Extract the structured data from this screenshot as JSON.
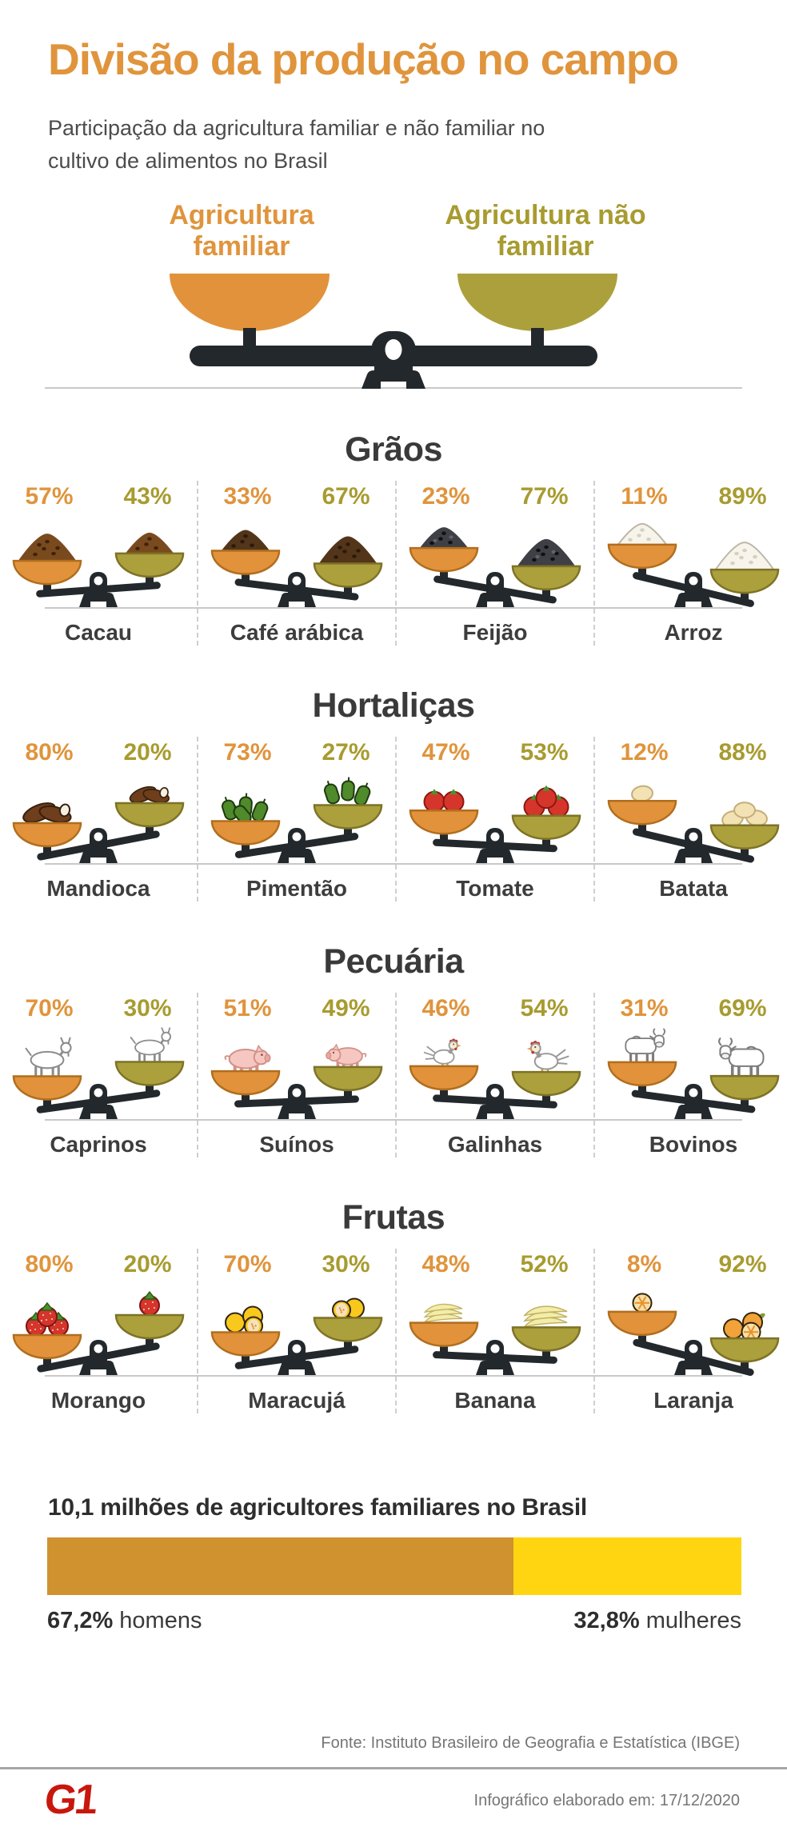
{
  "header": {
    "title": "Divisão da produção no campo",
    "subtitle": "Participação da agricultura familiar e não familiar no cultivo de alimentos no Brasil"
  },
  "legend": {
    "family_label": "Agricultura familiar",
    "non_family_label": "Agricultura não familiar"
  },
  "colors": {
    "family_orange": "#E0943C",
    "non_family_olive": "#A89B30",
    "bowl_orange": "#E2923A",
    "bowl_orange_stroke": "#B06E1E",
    "bowl_olive": "#ABA03C",
    "bowl_olive_stroke": "#7E7226",
    "beam_black": "#23282C",
    "section_title_dark": "#3A3A3A",
    "subtitle_gray": "#4C4C4C",
    "bar_men_orange": "#D0922F",
    "bar_women_yellow": "#FFD512",
    "g1_red": "#C8170D",
    "footer_gray": "#757575",
    "line_gray": "#C9C9C9"
  },
  "chart_data": {
    "type": "balance-scales-infographic",
    "series": [
      "Agricultura familiar",
      "Agricultura não familiar"
    ],
    "unit": "%",
    "sections": [
      {
        "title": "Grãos",
        "items": [
          {
            "label": "Cacau",
            "icon": "cocoa-mound",
            "family_pct": 57,
            "non_family_pct": 43
          },
          {
            "label": "Café arábica",
            "icon": "coffee-mound",
            "family_pct": 33,
            "non_family_pct": 67
          },
          {
            "label": "Feijão",
            "icon": "beans-mound",
            "family_pct": 23,
            "non_family_pct": 77
          },
          {
            "label": "Arroz",
            "icon": "rice-mound",
            "family_pct": 11,
            "non_family_pct": 89
          }
        ]
      },
      {
        "title": "Hortaliças",
        "items": [
          {
            "label": "Mandioca",
            "icon": "cassava-roots",
            "family_pct": 80,
            "non_family_pct": 20
          },
          {
            "label": "Pimentão",
            "icon": "green-peppers",
            "family_pct": 73,
            "non_family_pct": 27
          },
          {
            "label": "Tomate",
            "icon": "tomatoes",
            "family_pct": 47,
            "non_family_pct": 53
          },
          {
            "label": "Batata",
            "icon": "potatoes",
            "family_pct": 12,
            "non_family_pct": 88
          }
        ]
      },
      {
        "title": "Pecuária",
        "items": [
          {
            "label": "Caprinos",
            "icon": "goat",
            "family_pct": 70,
            "non_family_pct": 30
          },
          {
            "label": "Suínos",
            "icon": "pig",
            "family_pct": 51,
            "non_family_pct": 49
          },
          {
            "label": "Galinhas",
            "icon": "chicken",
            "family_pct": 46,
            "non_family_pct": 54
          },
          {
            "label": "Bovinos",
            "icon": "cattle",
            "family_pct": 31,
            "non_family_pct": 69
          }
        ]
      },
      {
        "title": "Frutas",
        "items": [
          {
            "label": "Morango",
            "icon": "strawberries",
            "family_pct": 80,
            "non_family_pct": 20
          },
          {
            "label": "Maracujá",
            "icon": "passion-fruit",
            "family_pct": 70,
            "non_family_pct": 30
          },
          {
            "label": "Banana",
            "icon": "bananas",
            "family_pct": 48,
            "non_family_pct": 52
          },
          {
            "label": "Laranja",
            "icon": "oranges",
            "family_pct": 8,
            "non_family_pct": 92
          }
        ]
      }
    ],
    "gender_bar": {
      "title": "10,1 milhões de agricultores familiares no Brasil",
      "segments": [
        {
          "label": "homens",
          "value_pct": 67.2,
          "value_display": "67,2%",
          "color": "#D0922F"
        },
        {
          "label": "mulheres",
          "value_pct": 32.8,
          "value_display": "32,8%",
          "color": "#FFD512"
        }
      ]
    }
  },
  "footer": {
    "source": "Fonte: Instituto Brasileiro de Geografia e Estatística (IBGE)",
    "logo_text": "G1",
    "date_note": "Infográfico elaborado em: 17/12/2020"
  }
}
